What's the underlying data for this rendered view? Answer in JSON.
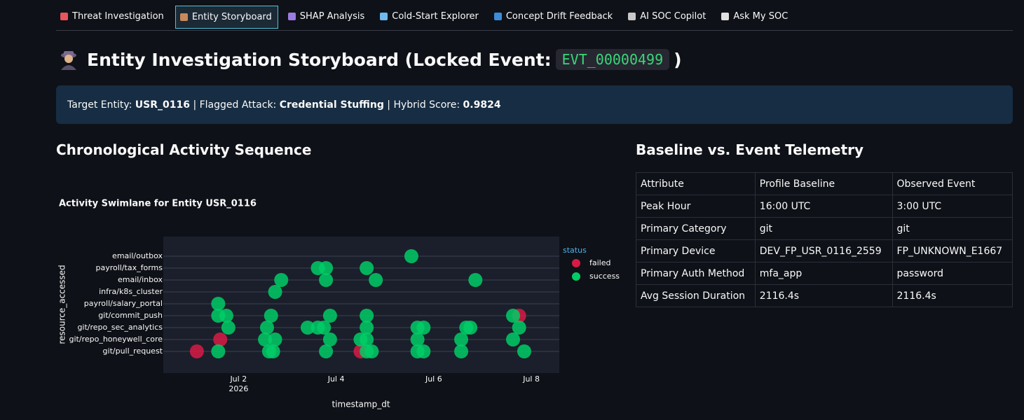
{
  "tabs": [
    "Threat Investigation",
    "Entity Storyboard",
    "SHAP Analysis",
    "Cold-Start Explorer",
    "Concept Drift Feedback",
    "AI SOC Copilot",
    "Ask My SOC"
  ],
  "header": {
    "title": "Entity Investigation Storyboard (Locked Event:",
    "event_id": "EVT_00000499",
    "title_end": ")"
  },
  "info": {
    "entity_label": "Target Entity: ",
    "entity": "USR_0116",
    "attack_label": " | Flagged Attack: ",
    "attack": "Credential Stuffing",
    "score_label": " | Hybrid Score: ",
    "score": "0.9824"
  },
  "sections": {
    "left": "Chronological Activity Sequence",
    "right": "Baseline vs. Event Telemetry"
  },
  "table": {
    "header": [
      "Attribute",
      "Profile Baseline",
      "Observed Event"
    ],
    "rows": [
      [
        "Peak Hour",
        "16:00 UTC",
        "3:00 UTC"
      ],
      [
        "Primary Category",
        "git",
        "git"
      ],
      [
        "Primary Device",
        "DEV_FP_USR_0116_2559",
        "FP_UNKNOWN_E1667"
      ],
      [
        "Primary Auth Method",
        "mfa_app",
        "password"
      ],
      [
        "Avg Session Duration",
        "2116.4s",
        "2116.4s"
      ]
    ]
  },
  "chart_data": {
    "type": "scatter",
    "title": "Activity Swimlane for Entity USR_0116",
    "x_label": "timestamp_dt",
    "y_label": "resource_accessed",
    "legend_title": "status",
    "categories": [
      "git/pull_request",
      "git/repo_honeywell_core",
      "git/repo_sec_analytics",
      "git/commit_push",
      "payroll/salary_portal",
      "infra/k8s_cluster",
      "email/inbox",
      "payroll/tax_forms",
      "email/outbox"
    ],
    "xlim": [
      "2026-06-30T11:00",
      "2026-07-08T13:45"
    ],
    "xticks": [
      {
        "value": "2026-07-02T00:00",
        "label": "Jul 2",
        "label2": "2026"
      },
      {
        "value": "2026-07-04T00:00",
        "label": "Jul 4"
      },
      {
        "value": "2026-07-06T00:00",
        "label": "Jul 6"
      },
      {
        "value": "2026-07-08T00:00",
        "label": "Jul 8"
      }
    ],
    "grid": true,
    "series": [
      {
        "name": "failed",
        "color": "#d81b45",
        "x": [
          "2026-07-01T03:30",
          "2026-07-01T15:00",
          "2026-07-04T12:00",
          "2026-07-07T18:00"
        ],
        "y": [
          "git/pull_request",
          "git/repo_honeywell_core",
          "git/pull_request",
          "git/commit_push"
        ]
      },
      {
        "name": "success",
        "color": "#00cc66",
        "x": [
          "2026-07-01T14:00",
          "2026-07-01T14:00",
          "2026-07-01T14:00",
          "2026-07-01T19:00",
          "2026-07-01T18:00",
          "2026-07-02T15:00",
          "2026-07-02T17:00",
          "2026-07-02T13:00",
          "2026-07-02T18:00",
          "2026-07-02T14:00",
          "2026-07-02T16:00",
          "2026-07-02T18:00",
          "2026-07-02T21:00",
          "2026-07-03T10:00",
          "2026-07-03T15:00",
          "2026-07-03T18:00",
          "2026-07-03T15:00",
          "2026-07-03T19:00",
          "2026-07-03T19:00",
          "2026-07-03T21:00",
          "2026-07-03T21:00",
          "2026-07-03T19:00",
          "2026-07-04T15:00",
          "2026-07-04T17:30",
          "2026-07-04T12:00",
          "2026-07-04T15:00",
          "2026-07-04T15:00",
          "2026-07-04T15:00",
          "2026-07-04T15:00",
          "2026-07-04T19:30",
          "2026-07-05T13:00",
          "2026-07-05T16:00",
          "2026-07-05T19:00",
          "2026-07-05T16:00",
          "2026-07-05T16:00",
          "2026-07-05T19:00",
          "2026-07-06T13:30",
          "2026-07-06T13:30",
          "2026-07-06T16:00",
          "2026-07-06T18:00",
          "2026-07-06T20:30",
          "2026-07-07T15:00",
          "2026-07-07T15:00",
          "2026-07-07T18:00",
          "2026-07-07T20:30"
        ],
        "y": [
          "git/pull_request",
          "git/commit_push",
          "payroll/salary_portal",
          "git/repo_sec_analytics",
          "git/commit_push",
          "git/pull_request",
          "git/pull_request",
          "git/repo_honeywell_core",
          "git/repo_honeywell_core",
          "git/repo_sec_analytics",
          "git/commit_push",
          "infra/k8s_cluster",
          "email/inbox",
          "git/repo_sec_analytics",
          "git/repo_sec_analytics",
          "git/repo_sec_analytics",
          "payroll/tax_forms",
          "payroll/tax_forms",
          "email/inbox",
          "git/commit_push",
          "git/repo_honeywell_core",
          "git/pull_request",
          "git/pull_request",
          "git/pull_request",
          "git/repo_honeywell_core",
          "git/repo_honeywell_core",
          "git/repo_sec_analytics",
          "git/commit_push",
          "payroll/tax_forms",
          "email/inbox",
          "email/outbox",
          "git/pull_request",
          "git/pull_request",
          "git/repo_honeywell_core",
          "git/repo_sec_analytics",
          "git/repo_sec_analytics",
          "git/pull_request",
          "git/repo_honeywell_core",
          "git/repo_sec_analytics",
          "git/repo_sec_analytics",
          "email/inbox",
          "git/repo_honeywell_core",
          "git/commit_push",
          "git/repo_sec_analytics",
          "git/pull_request"
        ]
      }
    ]
  }
}
